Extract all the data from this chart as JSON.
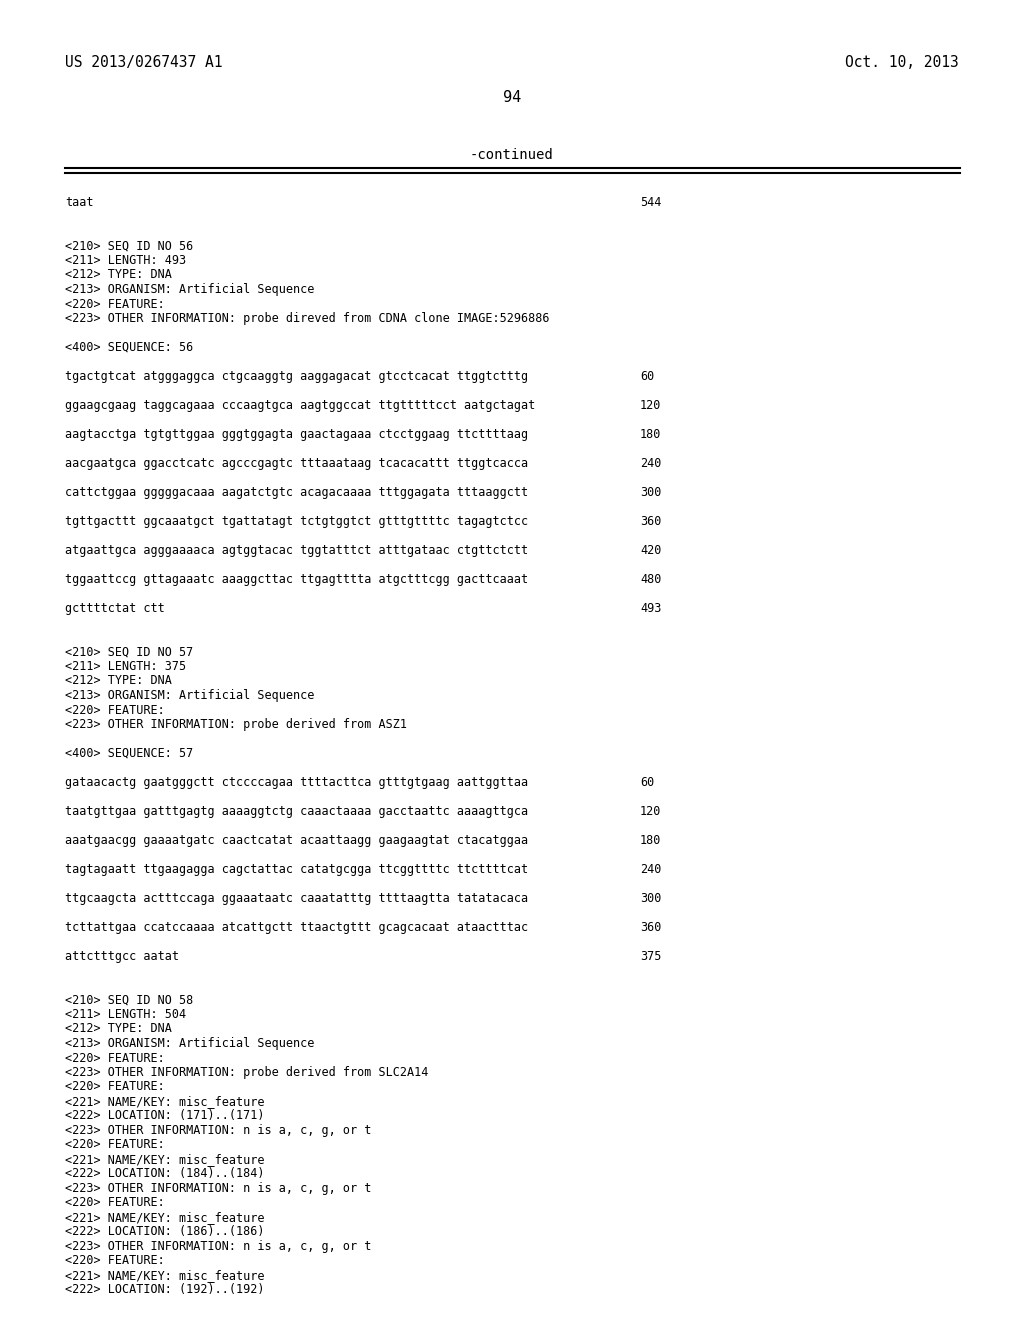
{
  "bg_color": "#ffffff",
  "text_color": "#000000",
  "header_left": "US 2013/0267437 A1",
  "header_right": "Oct. 10, 2013",
  "page_number": "94",
  "continued_label": "-continued",
  "body_fontsize": 8.5,
  "header_fontsize": 10.5,
  "page_num_fontsize": 11,
  "continued_fontsize": 10,
  "content_lines": [
    [
      "taat",
      "544"
    ],
    [
      "",
      ""
    ],
    [
      "",
      ""
    ],
    [
      "<210> SEQ ID NO 56",
      ""
    ],
    [
      "<211> LENGTH: 493",
      ""
    ],
    [
      "<212> TYPE: DNA",
      ""
    ],
    [
      "<213> ORGANISM: Artificial Sequence",
      ""
    ],
    [
      "<220> FEATURE:",
      ""
    ],
    [
      "<223> OTHER INFORMATION: probe direved from CDNA clone IMAGE:5296886",
      ""
    ],
    [
      "",
      ""
    ],
    [
      "<400> SEQUENCE: 56",
      ""
    ],
    [
      "",
      ""
    ],
    [
      "tgactgtcat atgggaggca ctgcaaggtg aaggagacat gtcctcacat ttggtctttg",
      "60"
    ],
    [
      "",
      ""
    ],
    [
      "ggaagcgaag taggcagaaa cccaagtgca aagtggccat ttgtttttcct aatgctagat",
      "120"
    ],
    [
      "",
      ""
    ],
    [
      "aagtacctga tgtgttggaa gggtggagta gaactagaaa ctcctggaag ttcttttaag",
      "180"
    ],
    [
      "",
      ""
    ],
    [
      "aacgaatgca ggacctcatc agcccgagtc tttaaataag tcacacattt ttggtcacca",
      "240"
    ],
    [
      "",
      ""
    ],
    [
      "cattctggaa gggggacaaa aagatctgtc acagacaaaa tttggagata tttaaggctt",
      "300"
    ],
    [
      "",
      ""
    ],
    [
      "tgttgacttt ggcaaatgct tgattatagt tctgtggtct gtttgttttc tagagtctcc",
      "360"
    ],
    [
      "",
      ""
    ],
    [
      "atgaattgca agggaaaaca agtggtacac tggtatttct atttgataac ctgttctctt",
      "420"
    ],
    [
      "",
      ""
    ],
    [
      "tggaattccg gttagaaatc aaaggcttac ttgagtttta atgctttcgg gacttcaaat",
      "480"
    ],
    [
      "",
      ""
    ],
    [
      "gcttttctat ctt",
      "493"
    ],
    [
      "",
      ""
    ],
    [
      "",
      ""
    ],
    [
      "<210> SEQ ID NO 57",
      ""
    ],
    [
      "<211> LENGTH: 375",
      ""
    ],
    [
      "<212> TYPE: DNA",
      ""
    ],
    [
      "<213> ORGANISM: Artificial Sequence",
      ""
    ],
    [
      "<220> FEATURE:",
      ""
    ],
    [
      "<223> OTHER INFORMATION: probe derived from ASZ1",
      ""
    ],
    [
      "",
      ""
    ],
    [
      "<400> SEQUENCE: 57",
      ""
    ],
    [
      "",
      ""
    ],
    [
      "gataacactg gaatgggctt ctccccagaa ttttacttca gtttgtgaag aattggttaa",
      "60"
    ],
    [
      "",
      ""
    ],
    [
      "taatgttgaa gatttgagtg aaaaggtctg caaactaaaa gacctaattc aaaagttgca",
      "120"
    ],
    [
      "",
      ""
    ],
    [
      "aaatgaacgg gaaaatgatc caactcatat acaattaagg gaagaagtat ctacatggaa",
      "180"
    ],
    [
      "",
      ""
    ],
    [
      "tagtagaatt ttgaagagga cagctattac catatgcgga ttcggttttc ttcttttcat",
      "240"
    ],
    [
      "",
      ""
    ],
    [
      "ttgcaagcta actttccaga ggaaataatc caaatatttg ttttaagtta tatatacaca",
      "300"
    ],
    [
      "",
      ""
    ],
    [
      "tcttattgaa ccatccaaaa atcattgctt ttaactgttt gcagcacaat ataactttac",
      "360"
    ],
    [
      "",
      ""
    ],
    [
      "attctttgcc aatat",
      "375"
    ],
    [
      "",
      ""
    ],
    [
      "",
      ""
    ],
    [
      "<210> SEQ ID NO 58",
      ""
    ],
    [
      "<211> LENGTH: 504",
      ""
    ],
    [
      "<212> TYPE: DNA",
      ""
    ],
    [
      "<213> ORGANISM: Artificial Sequence",
      ""
    ],
    [
      "<220> FEATURE:",
      ""
    ],
    [
      "<223> OTHER INFORMATION: probe derived from SLC2A14",
      ""
    ],
    [
      "<220> FEATURE:",
      ""
    ],
    [
      "<221> NAME/KEY: misc_feature",
      ""
    ],
    [
      "<222> LOCATION: (171)..(171)",
      ""
    ],
    [
      "<223> OTHER INFORMATION: n is a, c, g, or t",
      ""
    ],
    [
      "<220> FEATURE:",
      ""
    ],
    [
      "<221> NAME/KEY: misc_feature",
      ""
    ],
    [
      "<222> LOCATION: (184)..(184)",
      ""
    ],
    [
      "<223> OTHER INFORMATION: n is a, c, g, or t",
      ""
    ],
    [
      "<220> FEATURE:",
      ""
    ],
    [
      "<221> NAME/KEY: misc_feature",
      ""
    ],
    [
      "<222> LOCATION: (186)..(186)",
      ""
    ],
    [
      "<223> OTHER INFORMATION: n is a, c, g, or t",
      ""
    ],
    [
      "<220> FEATURE:",
      ""
    ],
    [
      "<221> NAME/KEY: misc_feature",
      ""
    ],
    [
      "<222> LOCATION: (192)..(192)",
      ""
    ]
  ]
}
